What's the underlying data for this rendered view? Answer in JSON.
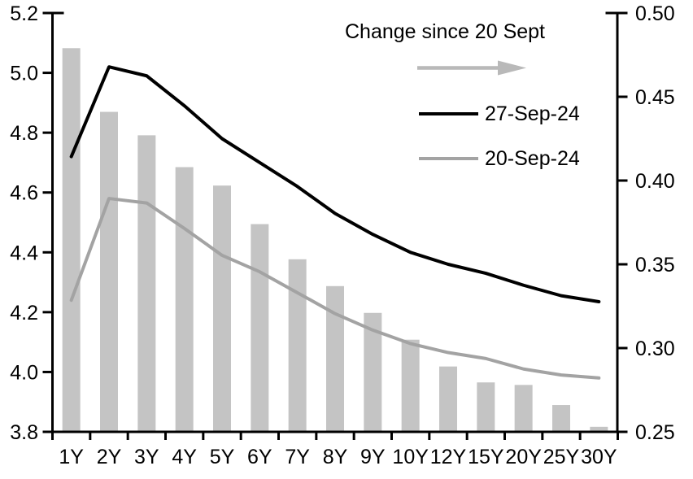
{
  "chart_data": {
    "type": "combo-bar-line",
    "title": "",
    "categories": [
      "1Y",
      "2Y",
      "3Y",
      "4Y",
      "5Y",
      "6Y",
      "7Y",
      "8Y",
      "9Y",
      "10Y",
      "12Y",
      "15Y",
      "20Y",
      "25Y",
      "30Y"
    ],
    "bar_series": {
      "name": "Change since 20 Sept",
      "axis": "right",
      "color": "#c4c4c4",
      "values": [
        0.479,
        0.441,
        0.427,
        0.408,
        0.397,
        0.374,
        0.353,
        0.337,
        0.321,
        0.305,
        0.289,
        0.2795,
        0.278,
        0.266,
        0.253
      ]
    },
    "line_series": [
      {
        "name": "27-Sep-24",
        "axis": "left",
        "color": "#000000",
        "values": [
          4.72,
          5.02,
          4.99,
          4.89,
          4.78,
          4.7,
          4.62,
          4.53,
          4.46,
          4.4,
          4.36,
          4.33,
          4.29,
          4.255,
          4.235
        ]
      },
      {
        "name": "20-Sep-24",
        "axis": "left",
        "color": "#a3a3a3",
        "values": [
          4.24,
          4.58,
          4.565,
          4.48,
          4.39,
          4.335,
          4.265,
          4.195,
          4.14,
          4.095,
          4.065,
          4.045,
          4.01,
          3.99,
          3.98
        ]
      }
    ],
    "axes": {
      "left": {
        "min": 3.8,
        "max": 5.2,
        "tick_labels": [
          "5.2",
          "5.0",
          "4.8",
          "4.6",
          "4.4",
          "4.2",
          "4.0",
          "3.8"
        ]
      },
      "right": {
        "min": 0.25,
        "max": 0.5,
        "tick_labels": [
          "0.50",
          "0.45",
          "0.40",
          "0.35",
          "0.30",
          "0.25"
        ]
      }
    },
    "legend": {
      "title": "Change since 20 Sept",
      "arrow": {
        "color": "#b9b9b9",
        "direction": "right"
      },
      "items": [
        {
          "label": "27-Sep-24",
          "color": "#000000"
        },
        {
          "label": "20-Sep-24",
          "color": "#a3a3a3"
        }
      ]
    },
    "layout": {
      "grid": false,
      "legend_position": "top-right-inside"
    }
  }
}
